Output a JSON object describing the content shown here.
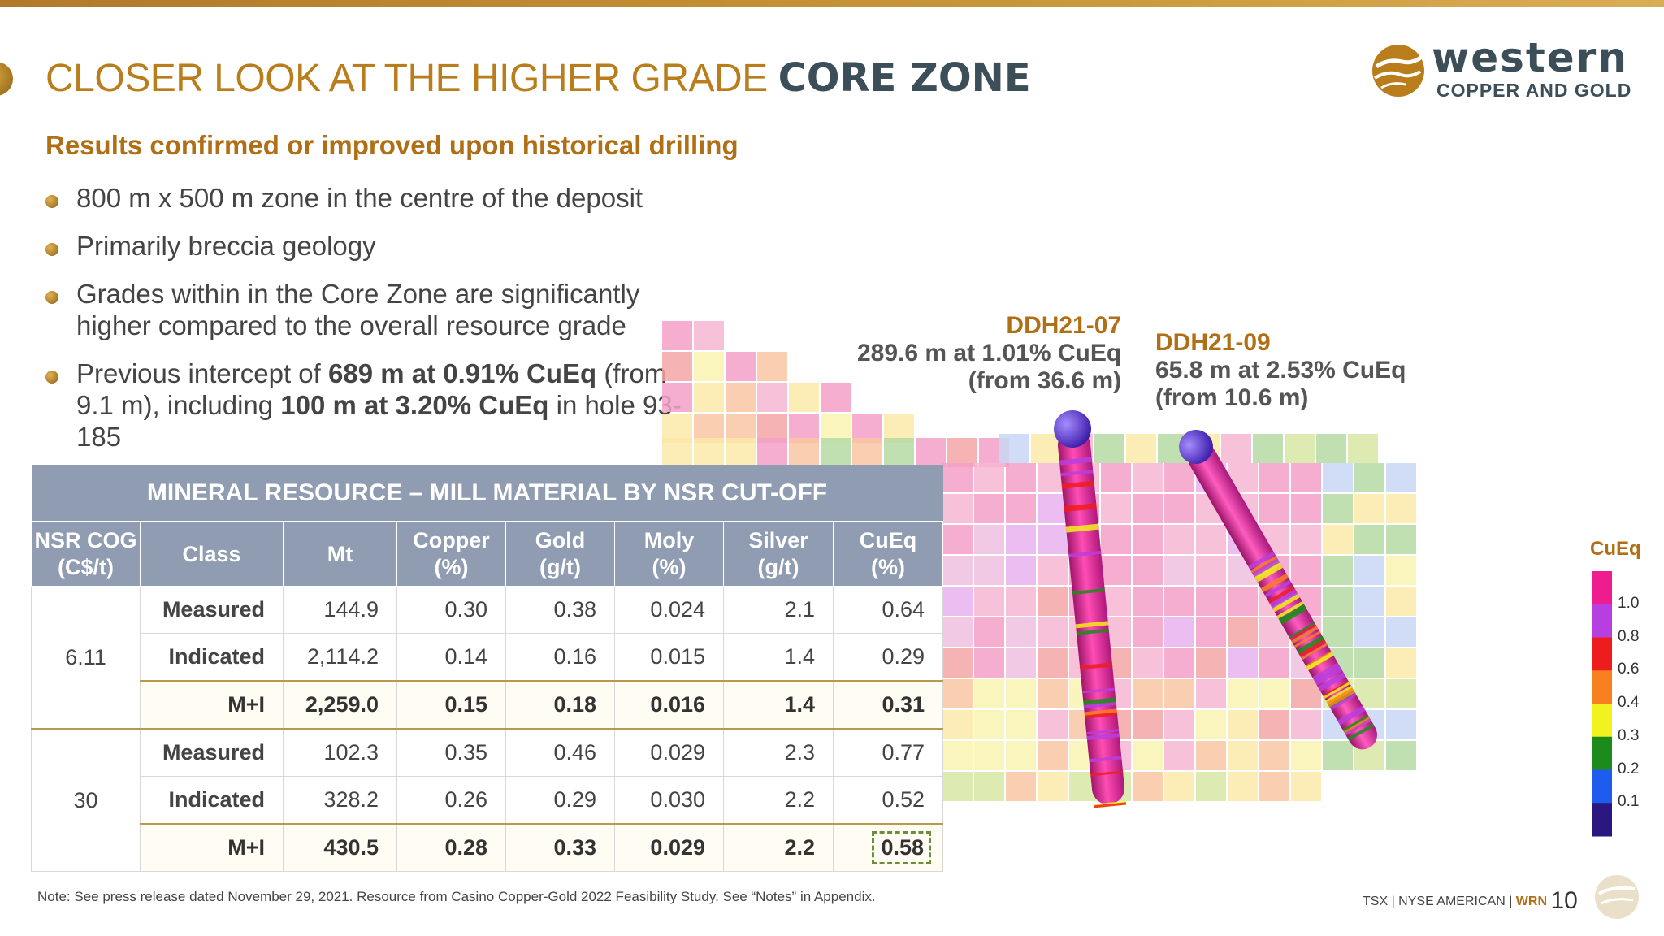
{
  "slide": {
    "title_part1": "CLOSER LOOK AT THE HIGHER GRADE ",
    "title_part2": "CORE ZONE",
    "subtitle": "Results confirmed or improved upon historical drilling",
    "bullets": [
      {
        "text": "800 m x 500 m zone in the centre of the deposit"
      },
      {
        "text": "Primarily breccia geology"
      },
      {
        "text": "Grades within in the Core Zone are significantly higher compared to the overall resource grade"
      },
      {
        "a": "Previous intercept of ",
        "b": "689 m at 0.91% CuEq",
        "c": " (from 9.1 m), including ",
        "d": "100 m at 3.20% CuEq",
        "e": " in hole 93-185"
      }
    ]
  },
  "logo": {
    "word": "western",
    "sub": "COPPER AND GOLD",
    "accent": "#b97d1c",
    "text_color": "#3c4e58"
  },
  "callouts": [
    {
      "hole": "DDH21-07",
      "line1": "289.6 m at 1.01% CuEq",
      "line2": "(from 36.6 m)"
    },
    {
      "hole": "DDH21-09",
      "line1": "65.8 m at 2.53% CuEq",
      "line2": "(from 10.6 m)"
    }
  ],
  "legend": {
    "title": "CuEq",
    "labels": [
      "1.0",
      "0.8",
      "0.6",
      "0.4",
      "0.3",
      "0.2",
      "0.1"
    ],
    "colors": [
      "#ee1c8e",
      "#b73ee0",
      "#ee1c1c",
      "#f7801f",
      "#f2f21e",
      "#1b8c1b",
      "#1e5cf0",
      "#2a1780"
    ]
  },
  "table": {
    "caption": "MINERAL RESOURCE – MILL MATERIAL BY NSR CUT-OFF",
    "headers": [
      {
        "l1": "NSR COG",
        "l2": "(C$/t)"
      },
      {
        "l1": "Class",
        "l2": ""
      },
      {
        "l1": "Mt",
        "l2": ""
      },
      {
        "l1": "Copper",
        "l2": "(%)"
      },
      {
        "l1": "Gold",
        "l2": "(g/t)"
      },
      {
        "l1": "Moly",
        "l2": "(%)"
      },
      {
        "l1": "Silver",
        "l2": "(g/t)"
      },
      {
        "l1": "CuEq",
        "l2": "(%)"
      }
    ],
    "groups": [
      {
        "cog": "6.11",
        "rows": [
          [
            "Measured",
            "144.9",
            "0.30",
            "0.38",
            "0.024",
            "2.1",
            "0.64"
          ],
          [
            "Indicated",
            "2,114.2",
            "0.14",
            "0.16",
            "0.015",
            "1.4",
            "0.29"
          ],
          [
            "M+I",
            "2,259.0",
            "0.15",
            "0.18",
            "0.016",
            "1.4",
            "0.31"
          ]
        ]
      },
      {
        "cog": "30",
        "rows": [
          [
            "Measured",
            "102.3",
            "0.35",
            "0.46",
            "0.029",
            "2.3",
            "0.77"
          ],
          [
            "Indicated",
            "328.2",
            "0.26",
            "0.29",
            "0.030",
            "2.2",
            "0.52"
          ],
          [
            "M+I",
            "430.5",
            "0.28",
            "0.33",
            "0.029",
            "2.2",
            "0.58"
          ]
        ]
      }
    ]
  },
  "note": "Note: See press release dated November 29, 2021. Resource from Casino Copper-Gold 2022 Feasibility Study. See “Notes” in Appendix.",
  "footer": {
    "exchange": "TSX | NYSE AMERICAN | ",
    "ticker": "WRN",
    "page": "10"
  }
}
